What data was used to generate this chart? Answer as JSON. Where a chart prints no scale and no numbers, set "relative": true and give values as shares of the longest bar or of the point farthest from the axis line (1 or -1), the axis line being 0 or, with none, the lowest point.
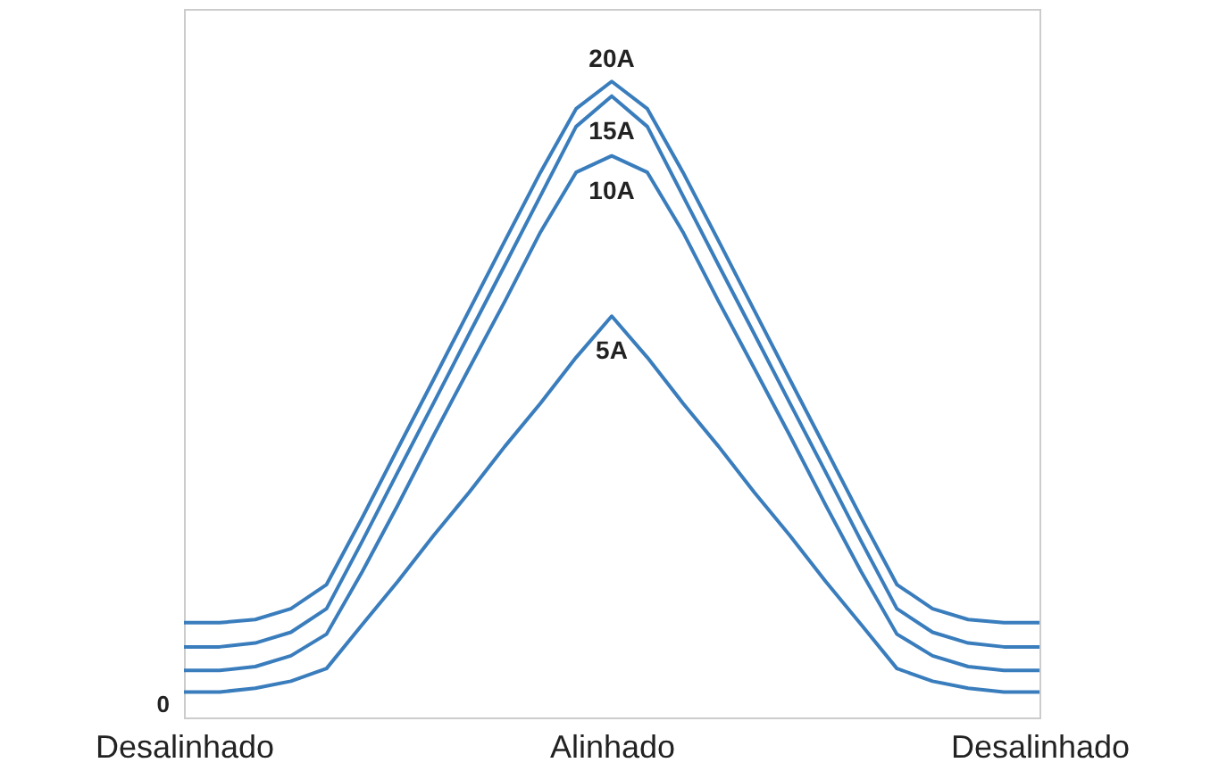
{
  "chart_data": {
    "type": "line",
    "relative": true,
    "categories": [
      "Desalinhado",
      null,
      null,
      null,
      null,
      null,
      null,
      null,
      null,
      null,
      null,
      null,
      "Alinhado",
      null,
      null,
      null,
      null,
      null,
      null,
      null,
      null,
      null,
      null,
      null,
      "Desalinhado"
    ],
    "series": [
      {
        "name": "5A",
        "color": "#3a7dbd",
        "values": [
          0.04,
          0.04,
          0.046,
          0.057,
          0.077,
          0.146,
          0.214,
          0.286,
          0.354,
          0.426,
          0.494,
          0.566,
          0.631,
          0.566,
          0.494,
          0.426,
          0.354,
          0.286,
          0.214,
          0.146,
          0.077,
          0.057,
          0.046,
          0.04,
          0.04
        ]
      },
      {
        "name": "10A",
        "color": "#3a7dbd",
        "values": [
          0.074,
          0.074,
          0.08,
          0.097,
          0.131,
          0.229,
          0.334,
          0.443,
          0.549,
          0.654,
          0.763,
          0.857,
          0.883,
          0.857,
          0.763,
          0.654,
          0.549,
          0.443,
          0.334,
          0.229,
          0.131,
          0.097,
          0.08,
          0.074,
          0.074
        ]
      },
      {
        "name": "15A",
        "color": "#3a7dbd",
        "values": [
          0.111,
          0.111,
          0.117,
          0.134,
          0.171,
          0.277,
          0.386,
          0.494,
          0.603,
          0.711,
          0.82,
          0.929,
          0.977,
          0.929,
          0.82,
          0.711,
          0.603,
          0.494,
          0.386,
          0.277,
          0.171,
          0.134,
          0.117,
          0.111,
          0.111
        ]
      },
      {
        "name": "20A",
        "color": "#3a7dbd",
        "values": [
          0.149,
          0.149,
          0.154,
          0.171,
          0.209,
          0.314,
          0.423,
          0.531,
          0.64,
          0.749,
          0.857,
          0.957,
          1.0,
          0.957,
          0.857,
          0.749,
          0.64,
          0.531,
          0.423,
          0.314,
          0.209,
          0.171,
          0.154,
          0.149,
          0.149
        ]
      }
    ],
    "annotations": [
      "0"
    ],
    "legend": false
  }
}
